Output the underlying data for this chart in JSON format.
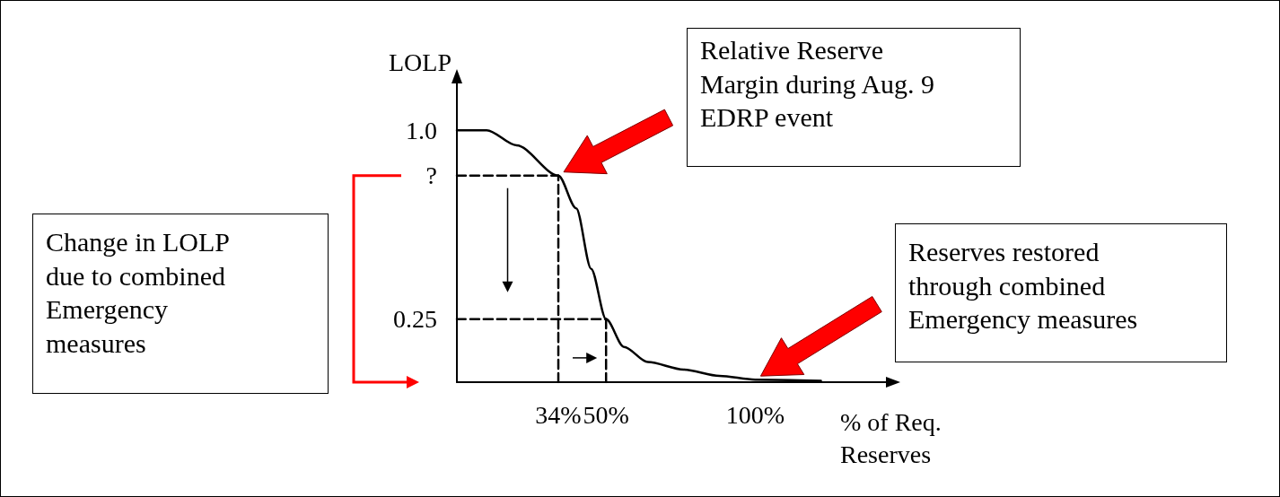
{
  "chart_data": {
    "type": "line",
    "ylabel": "LOLP",
    "xlabel": "% of Req. Reserves",
    "annotations": [
      "Relative Reserve Margin during Aug. 9 EDRP event",
      "Reserves restored through combined Emergency measures",
      "Change in LOLP due to combined Emergency measures"
    ],
    "xlim": [
      0,
      145
    ],
    "ylim": [
      0,
      1.2
    ],
    "xticks": [
      {
        "value": 34,
        "label": "34%"
      },
      {
        "value": 50,
        "label": "50%"
      },
      {
        "value": 100,
        "label": "100%"
      }
    ],
    "yticks": [
      {
        "value": 1.0,
        "label": "1.0"
      },
      {
        "value": 0.82,
        "label": "?"
      },
      0.25
    ],
    "grid": false,
    "marker": "none",
    "series": [
      {
        "color": "#000000",
        "line_style": "solid",
        "x": [
          0,
          10,
          20,
          34,
          40,
          45,
          50,
          56,
          64,
          76,
          88,
          100,
          122
        ],
        "values": [
          1.0,
          1.0,
          0.94,
          0.82,
          0.69,
          0.45,
          0.25,
          0.14,
          0.08,
          0.05,
          0.025,
          0.01,
          0.005
        ]
      },
      {
        "color": "#000000",
        "line_style": "dashed",
        "x": [
          0,
          34
        ],
        "values": [
          0.82,
          0.82
        ]
      },
      {
        "color": "#000000",
        "line_style": "dashed",
        "x": [
          34,
          34
        ],
        "values": [
          0,
          0.82
        ]
      },
      {
        "color": "#000000",
        "line_style": "dashed",
        "x": [
          0,
          50
        ],
        "values": [
          0.25,
          0.25
        ]
      },
      {
        "color": "#000000",
        "line_style": "dashed",
        "x": [
          50,
          50
        ],
        "values": [
          0,
          0.25
        ]
      }
    ]
  }
}
